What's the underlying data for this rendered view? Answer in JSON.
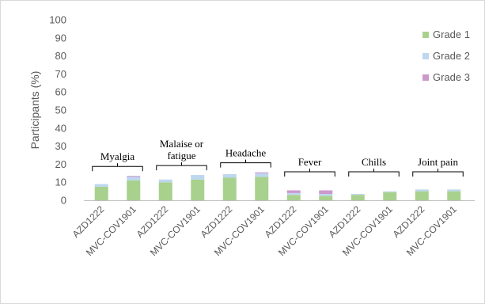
{
  "chart_data": {
    "type": "bar",
    "stacked": true,
    "ylabel": "Participants (%)",
    "ylim": [
      0,
      100
    ],
    "yticks": [
      0,
      10,
      20,
      30,
      40,
      50,
      60,
      70,
      80,
      90,
      100
    ],
    "categories": [
      "AZD1222",
      "MVC-COV1901",
      "AZD1222",
      "MVC-COV1901",
      "AZD1222",
      "MVC-COV1901",
      "AZD1222",
      "MVC-COV1901",
      "AZD1222",
      "MVC-COV1901",
      "AZD1222",
      "MVC-COV1901"
    ],
    "groups": [
      {
        "label_lines": [
          "Myalgia"
        ],
        "categories": [
          0,
          1
        ]
      },
      {
        "label_lines": [
          "Malaise or",
          "fatigue"
        ],
        "categories": [
          2,
          3
        ]
      },
      {
        "label_lines": [
          "Headache"
        ],
        "categories": [
          4,
          5
        ]
      },
      {
        "label_lines": [
          "Fever"
        ],
        "categories": [
          6,
          7
        ]
      },
      {
        "label_lines": [
          "Chills"
        ],
        "categories": [
          8,
          9
        ]
      },
      {
        "label_lines": [
          "Joint pain"
        ],
        "categories": [
          10,
          11
        ]
      }
    ],
    "series": [
      {
        "name": "Grade 1",
        "color": "#a9d18e",
        "values": [
          7.5,
          11,
          10,
          11.5,
          12.5,
          13,
          3,
          2.5,
          3,
          4.5,
          5,
          5
        ]
      },
      {
        "name": "Grade 2",
        "color": "#bdd7ee",
        "values": [
          1.5,
          2,
          1.5,
          2.5,
          2,
          2,
          1,
          1,
          0.5,
          0.5,
          1,
          1
        ]
      },
      {
        "name": "Grade 3",
        "color": "#cc99cc",
        "values": [
          0,
          0.5,
          0,
          0,
          0,
          0.5,
          1.5,
          2,
          0,
          0,
          0,
          0
        ]
      }
    ],
    "legend_position": "right",
    "grid": false
  }
}
